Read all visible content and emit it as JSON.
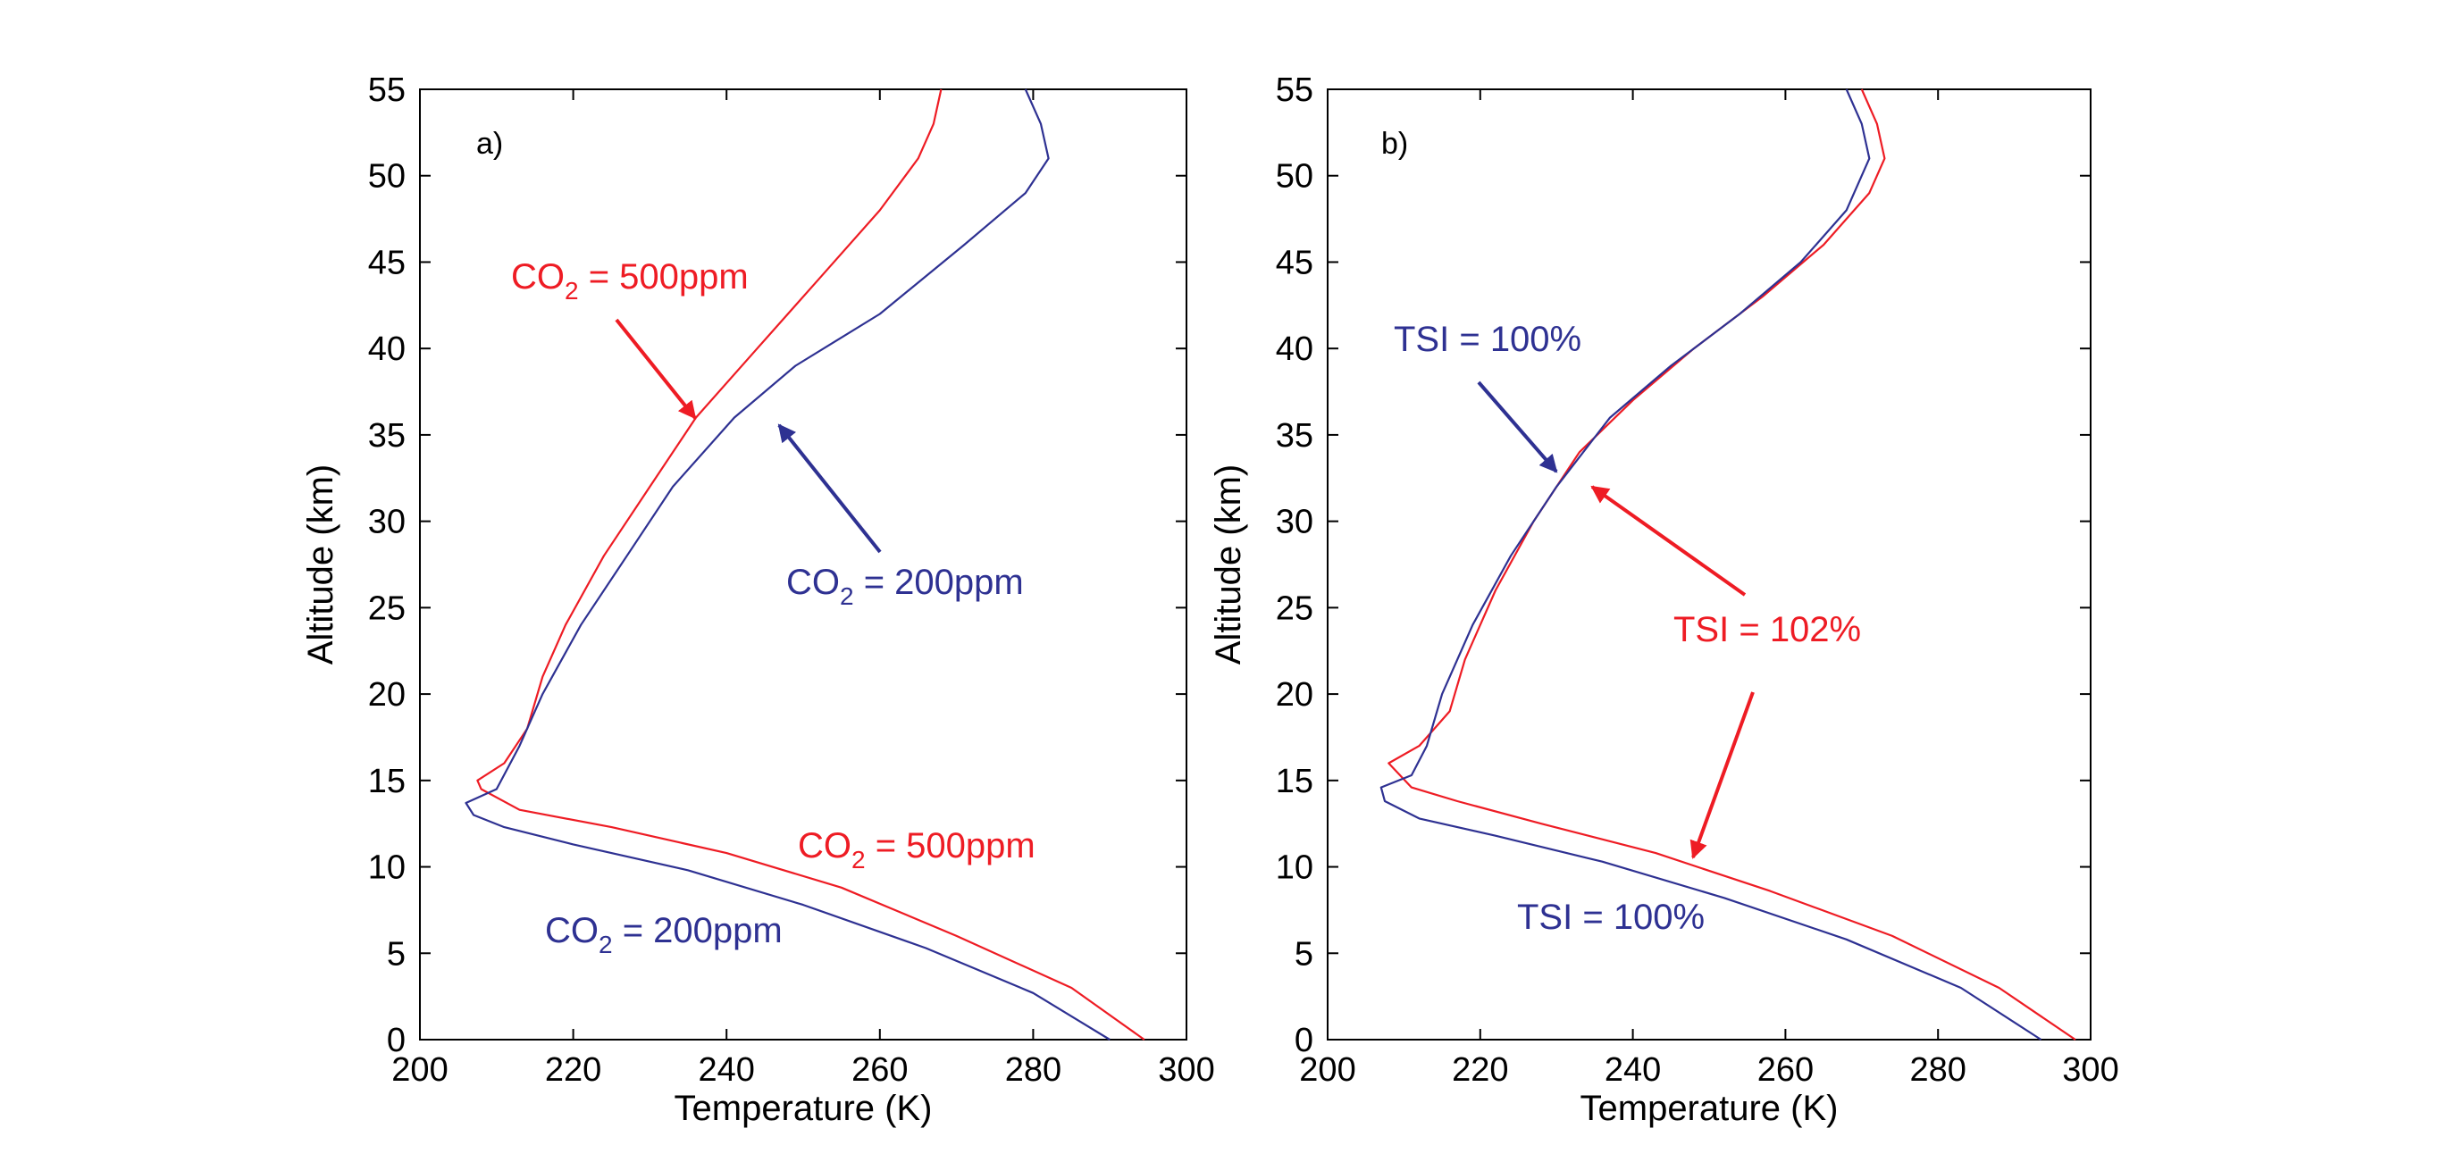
{
  "colors": {
    "red": "#ee1c24",
    "blue": "#2e3192",
    "axis": "#000000"
  },
  "chart_data": [
    {
      "type": "line",
      "panel_label": "a)",
      "xlabel": "Temperature (K)",
      "ylabel": "Altitude (km)",
      "xlim": [
        200,
        300
      ],
      "ylim": [
        0,
        55
      ],
      "xticks": [
        200,
        220,
        240,
        260,
        280,
        300
      ],
      "yticks": [
        0,
        5,
        10,
        15,
        20,
        25,
        30,
        35,
        40,
        45,
        50,
        55
      ],
      "grid": false,
      "series": [
        {
          "name": "CO2 = 500ppm",
          "color": "#ee1c24",
          "points": [
            [
              294.5,
              0
            ],
            [
              285,
              3
            ],
            [
              270,
              6
            ],
            [
              255,
              8.8
            ],
            [
              240,
              10.8
            ],
            [
              225,
              12.3
            ],
            [
              213,
              13.3
            ],
            [
              208,
              14.5
            ],
            [
              207.5,
              15
            ],
            [
              211,
              16
            ],
            [
              214,
              18
            ],
            [
              216,
              21
            ],
            [
              219,
              24
            ],
            [
              224,
              28
            ],
            [
              230,
              32
            ],
            [
              236,
              36
            ],
            [
              244,
              40
            ],
            [
              252,
              44
            ],
            [
              260,
              48
            ],
            [
              265,
              51
            ],
            [
              267,
              53
            ],
            [
              268,
              55
            ]
          ]
        },
        {
          "name": "CO2 = 200ppm",
          "color": "#2e3192",
          "points": [
            [
              290,
              0
            ],
            [
              280,
              2.7
            ],
            [
              266,
              5.3
            ],
            [
              250,
              7.8
            ],
            [
              235,
              9.8
            ],
            [
              220,
              11.3
            ],
            [
              211,
              12.3
            ],
            [
              207,
              13
            ],
            [
              206,
              13.7
            ],
            [
              210,
              14.5
            ],
            [
              213,
              17
            ],
            [
              216,
              20
            ],
            [
              221,
              24
            ],
            [
              227,
              28
            ],
            [
              233,
              32
            ],
            [
              241,
              36
            ],
            [
              249,
              39
            ],
            [
              260,
              42
            ],
            [
              271,
              46
            ],
            [
              279,
              49
            ],
            [
              282,
              51
            ],
            [
              281,
              53
            ],
            [
              279,
              55
            ]
          ]
        }
      ],
      "annotations": [
        {
          "main": "CO",
          "sub": "2",
          "rest": " = 500ppm",
          "color": "#ee1c24"
        },
        {
          "main": "CO",
          "sub": "2",
          "rest": " = 200ppm",
          "color": "#2e3192"
        },
        {
          "main": "CO",
          "sub": "2",
          "rest": " = 500ppm",
          "color": "#ee1c24"
        },
        {
          "main": "CO",
          "sub": "2",
          "rest": " = 200ppm",
          "color": "#2e3192"
        }
      ]
    },
    {
      "type": "line",
      "panel_label": "b)",
      "xlabel": "Temperature (K)",
      "ylabel": "Altitude (km)",
      "xlim": [
        200,
        300
      ],
      "ylim": [
        0,
        55
      ],
      "xticks": [
        200,
        220,
        240,
        260,
        280,
        300
      ],
      "yticks": [
        0,
        5,
        10,
        15,
        20,
        25,
        30,
        35,
        40,
        45,
        50,
        55
      ],
      "grid": false,
      "series": [
        {
          "name": "TSI = 102%",
          "color": "#ee1c24",
          "points": [
            [
              298,
              0
            ],
            [
              288,
              3
            ],
            [
              274,
              6
            ],
            [
              258,
              8.6
            ],
            [
              243,
              10.8
            ],
            [
              228,
              12.5
            ],
            [
              217,
              13.8
            ],
            [
              211,
              14.6
            ],
            [
              208,
              16
            ],
            [
              212,
              17
            ],
            [
              216,
              19
            ],
            [
              218,
              22
            ],
            [
              222,
              26
            ],
            [
              227,
              30
            ],
            [
              233,
              34
            ],
            [
              240,
              37
            ],
            [
              248,
              40
            ],
            [
              257,
              43
            ],
            [
              265,
              46
            ],
            [
              271,
              49
            ],
            [
              273,
              51
            ],
            [
              272,
              53
            ],
            [
              270,
              55
            ]
          ]
        },
        {
          "name": "TSI = 100%",
          "color": "#2e3192",
          "points": [
            [
              293.5,
              0
            ],
            [
              283,
              3
            ],
            [
              268,
              5.8
            ],
            [
              252,
              8.2
            ],
            [
              236,
              10.3
            ],
            [
              222,
              11.8
            ],
            [
              212,
              12.8
            ],
            [
              207.5,
              13.8
            ],
            [
              207,
              14.6
            ],
            [
              211,
              15.3
            ],
            [
              213,
              17
            ],
            [
              215,
              20
            ],
            [
              219,
              24
            ],
            [
              224,
              28
            ],
            [
              230,
              32
            ],
            [
              237,
              36
            ],
            [
              245,
              39
            ],
            [
              254,
              42
            ],
            [
              262,
              45
            ],
            [
              268,
              48
            ],
            [
              271,
              51
            ],
            [
              270,
              53
            ],
            [
              268,
              55
            ]
          ]
        }
      ],
      "annotations": [
        {
          "main": "TSI = 100%",
          "sub": "",
          "rest": "",
          "color": "#2e3192"
        },
        {
          "main": "TSI = 102%",
          "sub": "",
          "rest": "",
          "color": "#ee1c24"
        },
        {
          "main": "TSI = 100%",
          "sub": "",
          "rest": "",
          "color": "#2e3192"
        }
      ]
    }
  ]
}
